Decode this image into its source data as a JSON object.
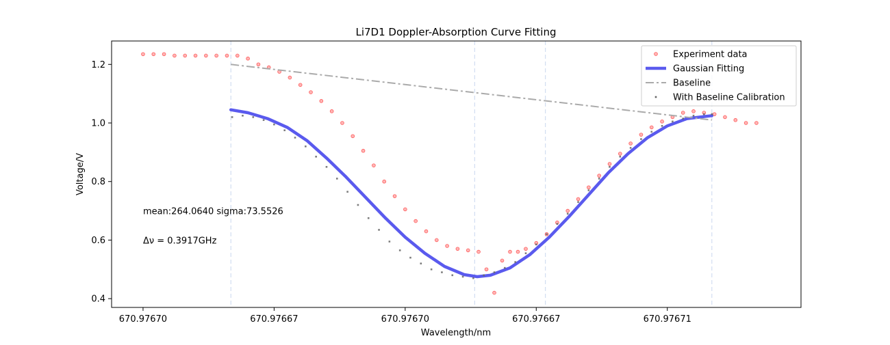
{
  "chart_data": {
    "type": "scatter",
    "title": "Li7D1 Doppler-Absorption Curve Fitting",
    "xlabel": "Wavelength/nm",
    "ylabel": "Voltage/V",
    "xlim": [
      -24,
      502
    ],
    "ylim": [
      0.37,
      1.28
    ],
    "x_ticks": [
      {
        "x": 0,
        "label": "670.97670"
      },
      {
        "x": 100,
        "label": "670.97667"
      },
      {
        "x": 200,
        "label": "670.97670"
      },
      {
        "x": 300,
        "label": "670.97667"
      },
      {
        "x": 400,
        "label": "670.97671"
      }
    ],
    "y_ticks": [
      {
        "y": 0.4,
        "label": "0.4"
      },
      {
        "y": 0.6,
        "label": "0.6"
      },
      {
        "y": 0.8,
        "label": "0.8"
      },
      {
        "y": 1.0,
        "label": "1.0"
      },
      {
        "y": 1.2,
        "label": "1.2"
      }
    ],
    "vlines": [
      67,
      253,
      307,
      434
    ],
    "grid": false,
    "legend_position": "top-right",
    "series": [
      {
        "name": "Experiment data",
        "style": "points",
        "color": "#ff5a5a",
        "x": [
          0,
          8,
          16,
          24,
          32,
          40,
          48,
          56,
          64,
          72,
          80,
          88,
          96,
          104,
          112,
          120,
          128,
          136,
          144,
          152,
          160,
          168,
          176,
          184,
          192,
          200,
          208,
          216,
          224,
          232,
          240,
          248,
          256,
          262,
          268,
          274,
          280,
          286,
          292,
          300,
          308,
          316,
          324,
          332,
          340,
          348,
          356,
          364,
          372,
          380,
          388,
          396,
          404,
          412,
          420,
          428,
          436,
          444,
          452,
          460,
          468
        ],
        "y": [
          1.235,
          1.235,
          1.235,
          1.23,
          1.23,
          1.23,
          1.23,
          1.23,
          1.23,
          1.23,
          1.22,
          1.2,
          1.19,
          1.175,
          1.155,
          1.13,
          1.105,
          1.075,
          1.04,
          1.0,
          0.955,
          0.905,
          0.855,
          0.8,
          0.75,
          0.705,
          0.665,
          0.63,
          0.6,
          0.58,
          0.57,
          0.565,
          0.56,
          0.5,
          0.42,
          0.53,
          0.56,
          0.56,
          0.57,
          0.59,
          0.62,
          0.66,
          0.7,
          0.74,
          0.78,
          0.82,
          0.86,
          0.895,
          0.93,
          0.96,
          0.985,
          1.005,
          1.02,
          1.035,
          1.04,
          1.035,
          1.03,
          1.02,
          1.01,
          1.0,
          1.0
        ]
      },
      {
        "name": "Gaussian Fitting",
        "style": "line",
        "color": "#5a5aee",
        "x": [
          67,
          80,
          95,
          110,
          125,
          140,
          155,
          170,
          185,
          200,
          215,
          230,
          245,
          255,
          265,
          280,
          295,
          310,
          325,
          340,
          355,
          370,
          385,
          400,
          415,
          434
        ],
        "y": [
          1.045,
          1.035,
          1.015,
          0.985,
          0.94,
          0.88,
          0.815,
          0.745,
          0.675,
          0.61,
          0.555,
          0.51,
          0.482,
          0.475,
          0.48,
          0.505,
          0.55,
          0.61,
          0.68,
          0.755,
          0.83,
          0.895,
          0.95,
          0.99,
          1.015,
          1.025
        ]
      },
      {
        "name": "Baseline",
        "style": "dashdot",
        "color": "#aaaaaa",
        "x": [
          67,
          434
        ],
        "y": [
          1.2,
          1.01
        ]
      },
      {
        "name": "With Baseline Calibration",
        "style": "squares",
        "color": "#666666",
        "x": [
          68,
          76,
          84,
          92,
          100,
          108,
          116,
          124,
          132,
          140,
          148,
          156,
          164,
          172,
          180,
          188,
          196,
          204,
          212,
          220,
          228,
          236,
          244,
          252,
          260,
          268,
          276,
          284,
          292,
          300,
          308,
          316,
          324,
          332,
          340,
          348,
          356,
          364,
          372,
          380,
          388,
          396,
          404,
          412,
          420,
          428,
          434
        ],
        "y": [
          1.02,
          1.025,
          1.02,
          1.01,
          0.995,
          0.975,
          0.95,
          0.92,
          0.885,
          0.85,
          0.81,
          0.765,
          0.72,
          0.675,
          0.635,
          0.595,
          0.565,
          0.54,
          0.52,
          0.5,
          0.49,
          0.48,
          0.475,
          0.47,
          0.48,
          0.49,
          0.505,
          0.525,
          0.555,
          0.585,
          0.62,
          0.655,
          0.69,
          0.73,
          0.77,
          0.81,
          0.85,
          0.885,
          0.915,
          0.945,
          0.97,
          0.99,
          1.005,
          1.015,
          1.025,
          1.03,
          1.03
        ]
      }
    ],
    "annotations": [
      {
        "text": "mean:264.0640 sigma:73.5526",
        "x": 0,
        "y": 0.7
      },
      {
        "text": "Δν = 0.3917GHz",
        "x": 0,
        "y": 0.6
      }
    ]
  }
}
